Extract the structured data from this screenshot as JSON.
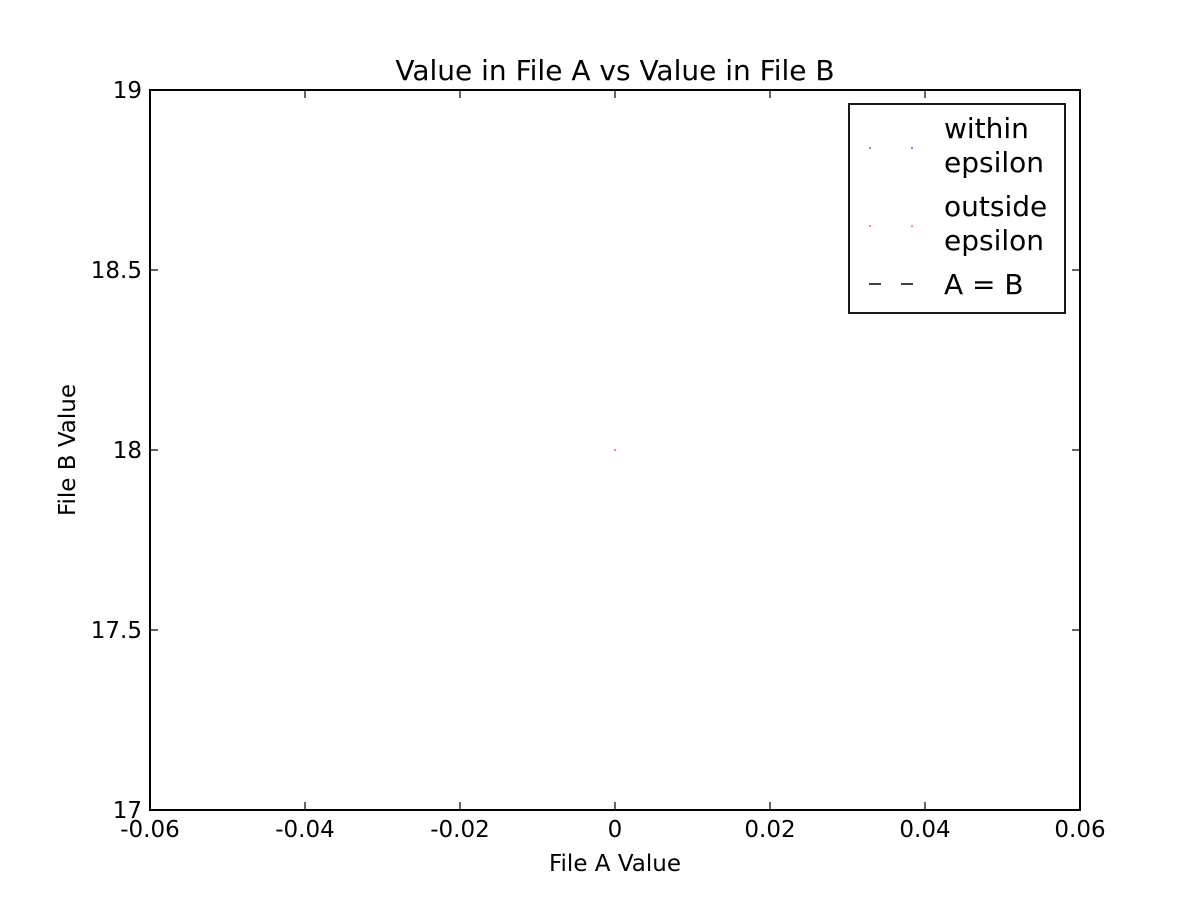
{
  "chart_data": {
    "type": "scatter",
    "title": "Value in File A vs Value in File B",
    "xlabel": "File A Value",
    "ylabel": "File B Value",
    "xlim": [
      -0.06,
      0.06
    ],
    "ylim": [
      17,
      19
    ],
    "xticks": [
      -0.06,
      -0.04,
      -0.02,
      0,
      0.02,
      0.04,
      0.06
    ],
    "xtick_labels": [
      "-0.06",
      "-0.04",
      "-0.02",
      "0",
      "0.02",
      "0.04",
      "0.06"
    ],
    "yticks": [
      17,
      17.5,
      18,
      18.5,
      19
    ],
    "ytick_labels": [
      "17",
      "17.5",
      "18",
      "18.5",
      "19"
    ],
    "grid": false,
    "legend_position": "top-right",
    "series": [
      {
        "name": "within\nepsilon",
        "marker": "point",
        "color": "#000080",
        "points": []
      },
      {
        "name": "outside\nepsilon",
        "marker": "point",
        "color": "#ff0000",
        "points": [
          [
            0,
            18
          ]
        ]
      },
      {
        "name": "A = B",
        "line": "dashed",
        "color": "#000000",
        "points": []
      }
    ]
  }
}
